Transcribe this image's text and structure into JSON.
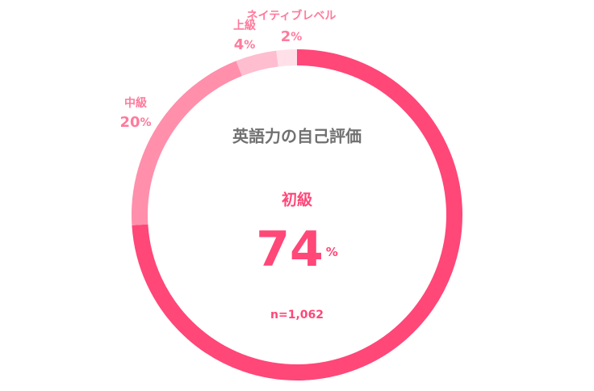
{
  "chart_data": {
    "type": "donut",
    "title": "英語力の自己評価",
    "categories": [
      "初級",
      "中級",
      "上級",
      "ネイティブレベル"
    ],
    "values": [
      74,
      20,
      4,
      2
    ],
    "colors": [
      "#ff4778",
      "#ff8fab",
      "#ffbdd0",
      "#ffe0e9"
    ],
    "unit": "%",
    "note": "n=1,062"
  }
}
